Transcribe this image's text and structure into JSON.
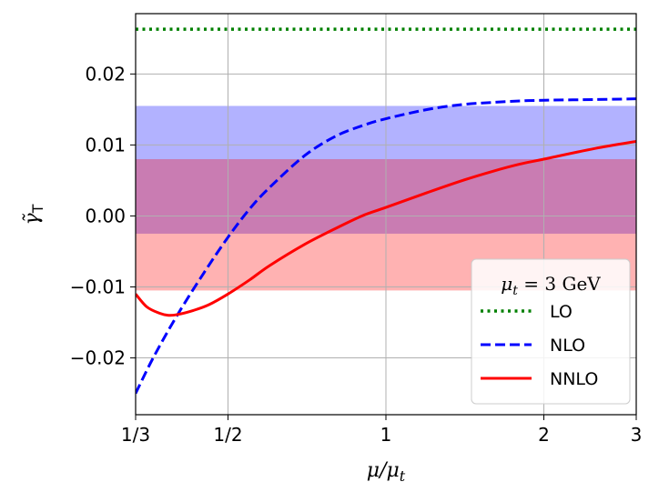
{
  "chart_data": {
    "type": "line",
    "title": "",
    "xlabel": "μ/μt",
    "ylabel": "γ̃T",
    "xscale": "log",
    "xlim": [
      0.33333,
      3.0
    ],
    "ylim": [
      -0.028,
      0.0285
    ],
    "x_ticks": [
      {
        "value": 0.33333,
        "label": "1/3"
      },
      {
        "value": 0.5,
        "label": "1/2"
      },
      {
        "value": 1.0,
        "label": "1"
      },
      {
        "value": 2.0,
        "label": "2"
      },
      {
        "value": 3.0,
        "label": "3"
      }
    ],
    "y_ticks": [
      {
        "value": 0.02,
        "label": "0.02"
      },
      {
        "value": 0.01,
        "label": "0.01"
      },
      {
        "value": 0.0,
        "label": "0.00"
      },
      {
        "value": -0.01,
        "label": "−0.01"
      },
      {
        "value": -0.02,
        "label": "−0.02"
      }
    ],
    "grid": true,
    "bands": [
      {
        "name": "NLO band",
        "y_low": -0.0025,
        "y_high": 0.0155,
        "color": "#0000ff",
        "opacity": 0.3
      },
      {
        "name": "NNLO band",
        "y_low": -0.0105,
        "y_high": 0.008,
        "color": "#ff0000",
        "opacity": 0.3
      }
    ],
    "series": [
      {
        "name": "LO",
        "color": "#008000",
        "style": "dotted",
        "x": [
          0.33333,
          3.0
        ],
        "y": [
          0.0263,
          0.0263
        ]
      },
      {
        "name": "NLO",
        "color": "#0000ff",
        "style": "dashed",
        "x": [
          0.33333,
          0.36,
          0.4,
          0.45,
          0.5,
          0.55,
          0.6,
          0.7,
          0.8,
          0.9,
          1.0,
          1.2,
          1.4,
          1.6,
          1.8,
          2.0,
          2.5,
          3.0
        ],
        "y": [
          -0.025,
          -0.02,
          -0.014,
          -0.008,
          -0.003,
          0.001,
          0.004,
          0.0085,
          0.0112,
          0.0127,
          0.0137,
          0.015,
          0.0157,
          0.016,
          0.0162,
          0.0163,
          0.0164,
          0.0165
        ]
      },
      {
        "name": "NNLO",
        "color": "#ff0000",
        "style": "solid",
        "x": [
          0.33333,
          0.35,
          0.37,
          0.385,
          0.4,
          0.43,
          0.46,
          0.5,
          0.55,
          0.6,
          0.7,
          0.8,
          0.9,
          1.0,
          1.2,
          1.4,
          1.6,
          1.8,
          2.0,
          2.5,
          3.0
        ],
        "y": [
          -0.011,
          -0.0128,
          -0.0137,
          -0.014,
          -0.0139,
          -0.0133,
          -0.0125,
          -0.011,
          -0.009,
          -0.007,
          -0.004,
          -0.0018,
          0.0,
          0.0012,
          0.0033,
          0.005,
          0.0063,
          0.0073,
          0.008,
          0.0095,
          0.0105
        ]
      }
    ],
    "legend": {
      "position": "lower-right",
      "title": "μt = 3 GeV",
      "entries": [
        "LO",
        "NLO",
        "NNLO"
      ]
    }
  }
}
